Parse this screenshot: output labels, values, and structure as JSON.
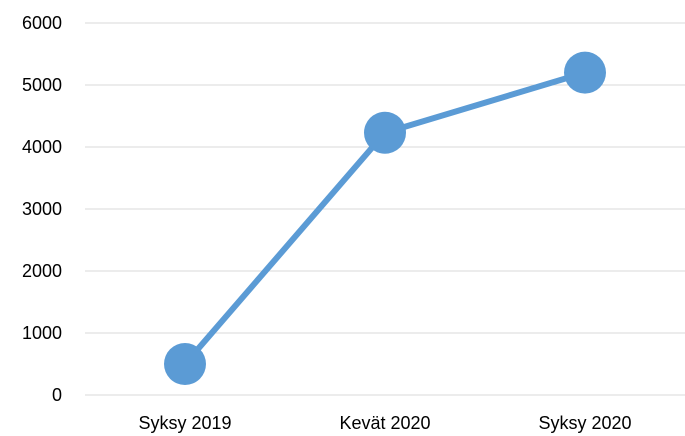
{
  "chart_data": {
    "type": "line",
    "categories": [
      "Syksy 2019",
      "Kevät 2020",
      "Syksy 2020"
    ],
    "series": [
      {
        "values": [
          500,
          4230,
          5200
        ]
      }
    ],
    "ylim": [
      0,
      6000
    ],
    "yticks": [
      0,
      1000,
      2000,
      3000,
      4000,
      5000,
      6000
    ],
    "grid": true,
    "legend": "none",
    "color": "#5b9bd5"
  }
}
